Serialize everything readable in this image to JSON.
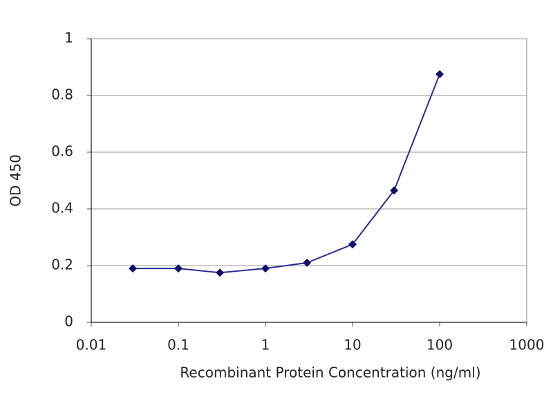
{
  "chart_data": {
    "type": "line",
    "x_label": "Recombinant Protein Concentration (ng/ml)",
    "y_label": "OD 450",
    "x": [
      0.03,
      0.1,
      0.3,
      1,
      3,
      10,
      30,
      100
    ],
    "series": [
      {
        "name": "OD 450",
        "color": "#2b2b9a",
        "marker_color": "#10106a",
        "values": [
          0.19,
          0.19,
          0.175,
          0.19,
          0.21,
          0.275,
          0.465,
          0.875
        ]
      }
    ],
    "xlim": [
      0.01,
      1000
    ],
    "xticks": [
      0.01,
      0.1,
      1,
      10,
      100,
      1000
    ],
    "x_log": true,
    "ylim": [
      0,
      1
    ],
    "yticks": [
      0,
      0.2,
      0.4,
      0.6,
      0.8,
      1
    ],
    "grid": true
  }
}
